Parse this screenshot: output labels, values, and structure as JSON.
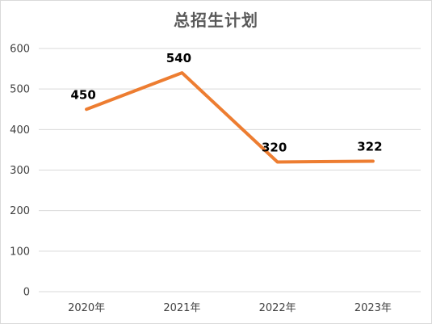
{
  "chart_data": {
    "type": "line",
    "title": "总招生计划",
    "xlabel": "",
    "ylabel": "",
    "categories": [
      "2020年",
      "2021年",
      "2022年",
      "2023年"
    ],
    "series": [
      {
        "values": [
          450,
          540,
          320,
          322
        ],
        "color": "#ed7d31"
      }
    ],
    "data_labels": [
      "450",
      "540",
      "320",
      "322"
    ],
    "ylim": [
      0,
      600
    ],
    "yticks": [
      "0",
      "100",
      "200",
      "300",
      "400",
      "500",
      "600"
    ],
    "grid": true,
    "legend": "none"
  }
}
